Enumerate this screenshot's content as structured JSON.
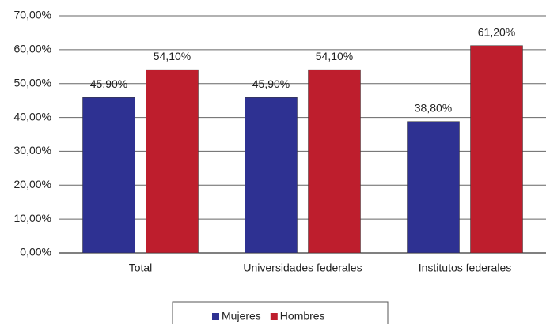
{
  "chart_data": {
    "type": "bar",
    "categories": [
      "Total",
      "Universidades federales",
      "Institutos federales"
    ],
    "series": [
      {
        "name": "Mujeres",
        "color": "#2e3192",
        "values": [
          45.9,
          45.9,
          38.8
        ],
        "value_labels": [
          "45,90%",
          "45,90%",
          "38,80%"
        ]
      },
      {
        "name": "Hombres",
        "color": "#be1e2d",
        "values": [
          54.1,
          54.1,
          61.2
        ],
        "value_labels": [
          "54,10%",
          "54,10%",
          "61,20%"
        ]
      }
    ],
    "ylim": [
      0,
      70
    ],
    "yticks": [
      {
        "value": 0,
        "label": "0,00%"
      },
      {
        "value": 10,
        "label": "10,00%"
      },
      {
        "value": 20,
        "label": "20,00%"
      },
      {
        "value": 30,
        "label": "30,00%"
      },
      {
        "value": 40,
        "label": "40,00%"
      },
      {
        "value": 50,
        "label": "50,00%"
      },
      {
        "value": 60,
        "label": "60,00%"
      },
      {
        "value": 70,
        "label": "70,00%"
      }
    ],
    "grid": true,
    "legend": "bottom"
  }
}
